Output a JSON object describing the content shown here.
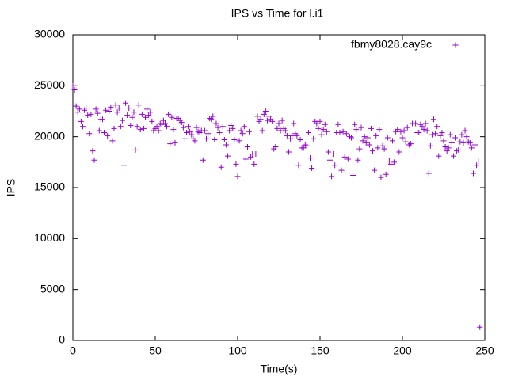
{
  "chart_data": {
    "type": "scatter",
    "title": "IPS vs Time for l.i1",
    "xlabel": "Time(s)",
    "ylabel": "IPS",
    "xlim": [
      0,
      250
    ],
    "xticks": [
      0,
      50,
      100,
      150,
      200,
      250
    ],
    "ylim": [
      0,
      30000
    ],
    "yticks": [
      0,
      5000,
      10000,
      15000,
      20000,
      25000,
      30000
    ],
    "grid": false,
    "legend": "top right",
    "x": [
      0,
      1,
      2,
      3,
      4,
      5,
      6,
      7,
      8,
      9,
      10,
      11,
      12,
      13,
      14,
      15,
      16,
      17,
      18,
      19,
      20,
      21,
      22,
      23,
      24,
      25,
      26,
      27,
      28,
      29,
      30,
      31,
      32,
      33,
      34,
      35,
      36,
      37,
      38,
      39,
      40,
      41,
      42,
      43,
      44,
      45,
      46,
      47,
      48,
      49,
      50,
      51,
      52,
      53,
      54,
      55,
      56,
      57,
      58,
      59,
      60,
      61,
      62,
      63,
      64,
      65,
      66,
      67,
      68,
      69,
      70,
      71,
      72,
      73,
      74,
      75,
      76,
      77,
      78,
      79,
      80,
      81,
      82,
      83,
      84,
      85,
      86,
      87,
      88,
      89,
      90,
      91,
      92,
      93,
      94,
      95,
      96,
      97,
      98,
      99,
      100,
      101,
      102,
      103,
      104,
      105,
      106,
      107,
      108,
      109,
      110,
      111,
      112,
      113,
      114,
      115,
      116,
      117,
      118,
      119,
      120,
      121,
      122,
      123,
      124,
      125,
      126,
      127,
      128,
      129,
      130,
      131,
      132,
      133,
      134,
      135,
      136,
      137,
      138,
      139,
      140,
      141,
      142,
      143,
      144,
      145,
      146,
      147,
      148,
      149,
      150,
      151,
      152,
      153,
      154,
      155,
      156,
      157,
      158,
      159,
      160,
      161,
      162,
      163,
      164,
      165,
      166,
      167,
      168,
      169,
      170,
      171,
      172,
      173,
      174,
      175,
      176,
      177,
      178,
      179,
      180,
      181,
      182,
      183,
      184,
      185,
      186,
      187,
      188,
      189,
      190,
      191,
      192,
      193,
      194,
      195,
      196,
      197,
      198,
      199,
      200,
      201,
      202,
      203,
      204,
      205,
      206,
      207,
      208,
      209,
      210,
      211,
      212,
      213,
      214,
      215,
      216,
      217,
      218,
      219,
      220,
      221,
      222,
      223,
      224,
      225,
      226,
      227,
      228,
      229,
      230,
      231,
      232,
      233,
      234,
      235,
      236,
      237,
      238,
      239,
      240,
      241,
      242,
      243,
      244,
      245,
      246,
      247
    ],
    "series": [
      {
        "name": "fbmy8028.cay9c",
        "color": "#9400d3",
        "values": [
          25000,
          24600,
          23000,
          22400,
          22700,
          21500,
          21000,
          22600,
          22800,
          22100,
          20300,
          22200,
          18600,
          17700,
          22700,
          22300,
          20600,
          21700,
          21700,
          20400,
          22600,
          20100,
          22500,
          22900,
          19600,
          20800,
          23100,
          22400,
          22800,
          21000,
          21600,
          17200,
          23300,
          22100,
          22800,
          21100,
          21900,
          22400,
          18700,
          21000,
          23100,
          20700,
          22200,
          20800,
          21900,
          22700,
          22100,
          22400,
          21500,
          20600,
          20800,
          21000,
          20600,
          21300,
          21200,
          21600,
          21300,
          21000,
          22200,
          19300,
          21900,
          20700,
          19400,
          21800,
          21800,
          21600,
          21400,
          20900,
          19800,
          20400,
          21000,
          20500,
          20200,
          19800,
          19600,
          20900,
          20500,
          20400,
          20600,
          17700,
          20600,
          19800,
          20300,
          21800,
          21700,
          22000,
          19700,
          21300,
          20900,
          20400,
          17000,
          21000,
          19700,
          19200,
          18100,
          20600,
          21100,
          20800,
          19700,
          17300,
          16100,
          19600,
          20600,
          20300,
          21000,
          17800,
          19000,
          20500,
          18000,
          18300,
          17300,
          18300,
          22000,
          21500,
          21700,
          20600,
          22200,
          22500,
          21600,
          22000,
          21700,
          21500,
          18800,
          19000,
          20800,
          21300,
          20600,
          21600,
          20800,
          20600,
          20100,
          18500,
          19800,
          20100,
          21300,
          20300,
          20100,
          17200,
          19700,
          18900,
          18900,
          19200,
          19100,
          20400,
          17900,
          16900,
          19800,
          21500,
          21300,
          20800,
          21500,
          20200,
          20700,
          21200,
          20500,
          18500,
          17700,
          16100,
          18300,
          17200,
          20400,
          21200,
          20400,
          16700,
          20500,
          18000,
          20300,
          17800,
          20000,
          19900,
          16200,
          21200,
          20700,
          17700,
          18800,
          20900,
          19600,
          20000,
          19400,
          19900,
          19200,
          20800,
          18600,
          16700,
          20100,
          18900,
          20700,
          16000,
          19100,
          18800,
          16300,
          19900,
          17600,
          17300,
          19600,
          17500,
          20500,
          20700,
          18500,
          20500,
          19900,
          20600,
          19500,
          20900,
          19200,
          19300,
          21300,
          18300,
          21300,
          20400,
          20400,
          21200,
          21000,
          20700,
          21300,
          20600,
          16400,
          19100,
          20200,
          21700,
          20300,
          21000,
          18100,
          20100,
          20400,
          19600,
          19000,
          18600,
          18900,
          20200,
          19400,
          18100,
          19900,
          18600,
          18700,
          19500,
          20200,
          19400,
          20600,
          20000,
          19500,
          19400,
          18900,
          16400,
          19200,
          17200,
          17600,
          1300
        ]
      }
    ]
  }
}
